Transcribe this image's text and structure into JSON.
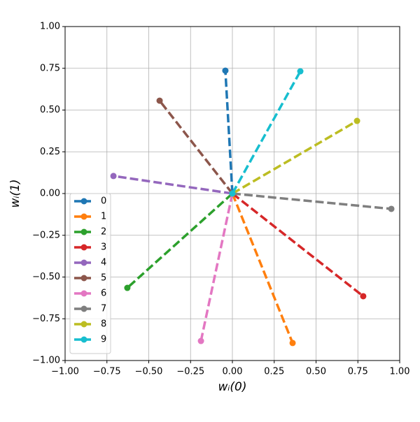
{
  "chart_data": {
    "type": "line",
    "xlabel": "wᵢ(0)",
    "ylabel": "wᵢ(1)",
    "xlim": [
      -1,
      1
    ],
    "ylim": [
      -1,
      1
    ],
    "xticks": [
      {
        "value": -1,
        "label": "−1.00"
      },
      {
        "value": -0.75,
        "label": "−0.75"
      },
      {
        "value": -0.5,
        "label": "−0.50"
      },
      {
        "value": -0.25,
        "label": "−0.25"
      },
      {
        "value": 0,
        "label": "0.00"
      },
      {
        "value": 0.25,
        "label": "0.25"
      },
      {
        "value": 0.5,
        "label": "0.50"
      },
      {
        "value": 0.75,
        "label": "0.75"
      },
      {
        "value": 1,
        "label": "1.00"
      }
    ],
    "yticks": [
      {
        "value": -1,
        "label": "−1.00"
      },
      {
        "value": -0.75,
        "label": "−0.75"
      },
      {
        "value": -0.5,
        "label": "−0.50"
      },
      {
        "value": -0.25,
        "label": "−0.25"
      },
      {
        "value": 0,
        "label": "0.00"
      },
      {
        "value": 0.25,
        "label": "0.25"
      },
      {
        "value": 0.5,
        "label": "0.50"
      },
      {
        "value": 0.75,
        "label": "0.75"
      },
      {
        "value": 1,
        "label": "1.00"
      }
    ],
    "grid": true,
    "legend": "lower left",
    "series": [
      {
        "name": "0",
        "color": "#1f77b4",
        "x": [
          0,
          -0.042
        ],
        "values": [
          0,
          0.736
        ]
      },
      {
        "name": "1",
        "color": "#ff7f0e",
        "x": [
          0,
          0.36
        ],
        "values": [
          0,
          -0.895
        ]
      },
      {
        "name": "2",
        "color": "#2ca02c",
        "x": [
          0,
          -0.628
        ],
        "values": [
          0,
          -0.565
        ]
      },
      {
        "name": "3",
        "color": "#d62728",
        "x": [
          0,
          0.782
        ],
        "values": [
          0,
          -0.615
        ]
      },
      {
        "name": "4",
        "color": "#9467bd",
        "x": [
          0,
          -0.711
        ],
        "values": [
          0,
          0.105
        ]
      },
      {
        "name": "5",
        "color": "#8c564b",
        "x": [
          0,
          -0.435
        ],
        "values": [
          0,
          0.556
        ]
      },
      {
        "name": "6",
        "color": "#e377c2",
        "x": [
          0,
          -0.188
        ],
        "values": [
          0,
          -0.883
        ]
      },
      {
        "name": "7",
        "color": "#7f7f7f",
        "x": [
          0,
          0.95
        ],
        "values": [
          0,
          -0.092
        ]
      },
      {
        "name": "8",
        "color": "#bcbd22",
        "x": [
          0,
          0.745
        ],
        "values": [
          0,
          0.435
        ]
      },
      {
        "name": "9",
        "color": "#17becf",
        "x": [
          0,
          0.406
        ],
        "values": [
          0,
          0.732
        ]
      }
    ]
  }
}
